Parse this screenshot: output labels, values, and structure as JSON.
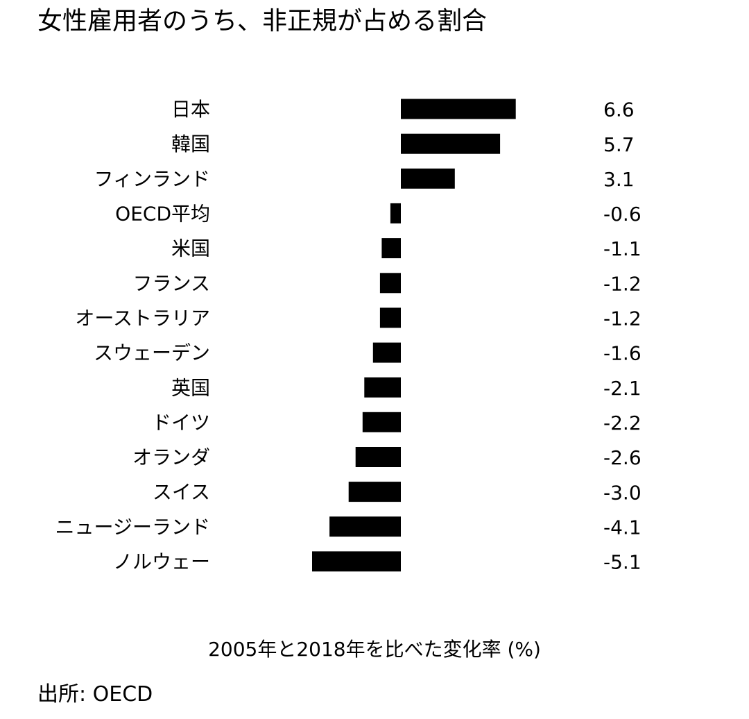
{
  "chart_data": {
    "type": "bar",
    "orientation": "horizontal",
    "title": "女性雇用者のうち、非正規が占める割合",
    "xlabel": "2005年と2018年を比べた変化率 (%)",
    "source": "出所: OECD",
    "categories": [
      "日本",
      "韓国",
      "フィンランド",
      "OECD平均",
      "米国",
      "フランス",
      "オーストラリア",
      "スウェーデン",
      "英国",
      "ドイツ",
      "オランダ",
      "スイス",
      "ニュージーランド",
      "ノルウェー"
    ],
    "values": [
      6.6,
      5.7,
      3.1,
      -0.6,
      -1.1,
      -1.2,
      -1.2,
      -1.6,
      -2.1,
      -2.2,
      -2.6,
      -3.0,
      -4.1,
      -5.1
    ],
    "value_labels": [
      "6.6",
      "5.7",
      "3.1",
      "-0.6",
      "-1.1",
      "-1.2",
      "-1.2",
      "-1.6",
      "-2.1",
      "-2.2",
      "-2.6",
      "-3.0",
      "-4.1",
      "-5.1"
    ],
    "bar_color": "#000000",
    "grid": false,
    "legend": "none"
  }
}
